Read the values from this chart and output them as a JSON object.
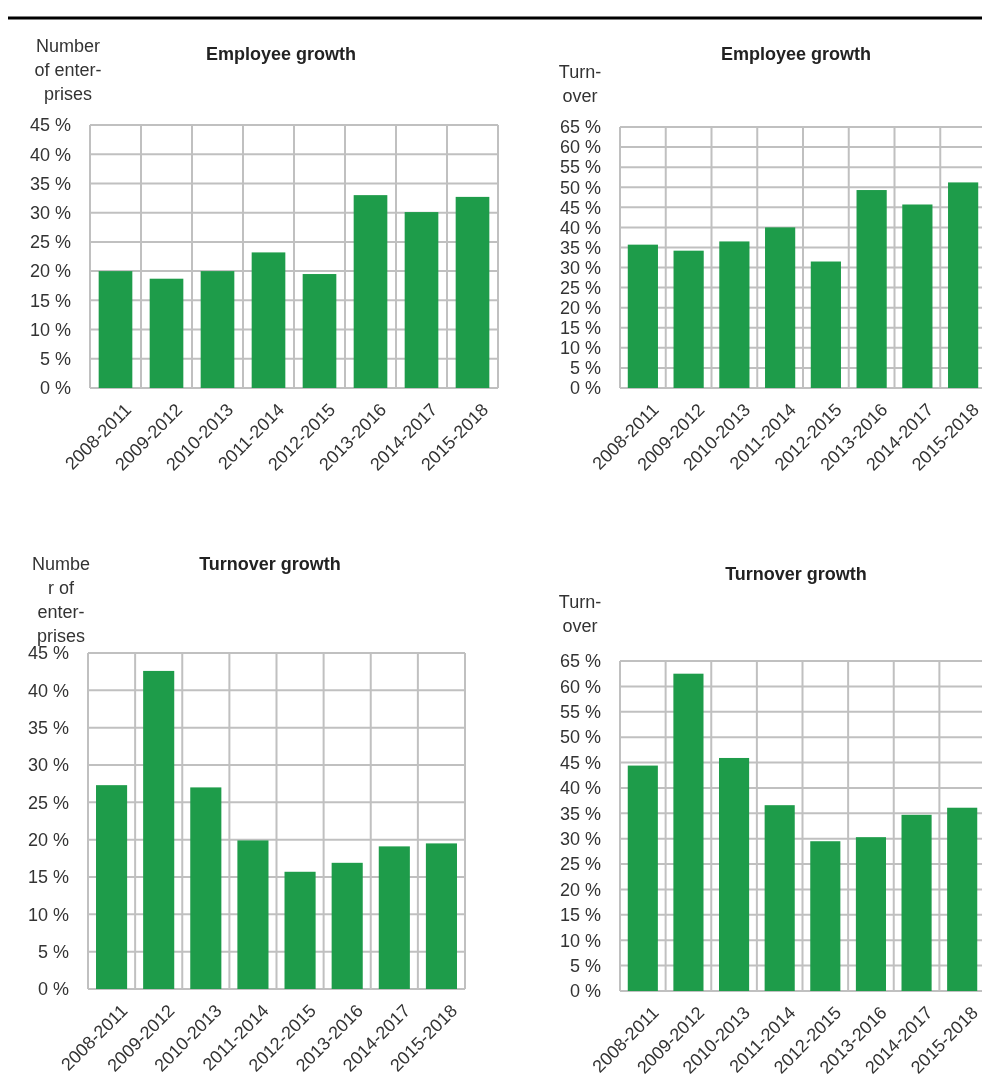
{
  "chart_data": [
    {
      "type": "bar",
      "title": "Employee growth",
      "ylabel": "Number\nof enter-\nprises",
      "categories": [
        "2008-2011",
        "2009-2012",
        "2010-2013",
        "2011-2014",
        "2012-2015",
        "2013-2016",
        "2014-2017",
        "2015-2018"
      ],
      "values": [
        20.0,
        18.7,
        20.0,
        23.2,
        19.5,
        33.0,
        30.1,
        32.7
      ],
      "color": "#1e9c4a",
      "ylim": [
        0,
        45
      ],
      "yticks": [
        {
          "value": 0,
          "label": "0 %"
        },
        {
          "value": 5,
          "label": "5 %"
        },
        {
          "value": 10,
          "label": "10 %"
        },
        {
          "value": 15,
          "label": "15 %"
        },
        {
          "value": 20,
          "label": "20 %"
        },
        {
          "value": 25,
          "label": "25 %"
        },
        {
          "value": 30,
          "label": "30 %"
        },
        {
          "value": 35,
          "label": "35 %"
        },
        {
          "value": 40,
          "label": "40 %"
        },
        {
          "value": 45,
          "label": "45 %"
        }
      ],
      "grid": true
    },
    {
      "type": "bar",
      "title": "Employee growth",
      "ylabel": "Turn-\nover",
      "categories": [
        "2008-2011",
        "2009-2012",
        "2010-2013",
        "2011-2014",
        "2012-2015",
        "2013-2016",
        "2014-2017",
        "2015-2018"
      ],
      "values": [
        35.7,
        34.2,
        36.5,
        40.0,
        31.5,
        49.3,
        45.7,
        51.2
      ],
      "color": "#1e9c4a",
      "ylim": [
        0,
        65
      ],
      "yticks": [
        {
          "value": 0,
          "label": "0 %"
        },
        {
          "value": 5,
          "label": "5 %"
        },
        {
          "value": 10,
          "label": "10 %"
        },
        {
          "value": 15,
          "label": "15 %"
        },
        {
          "value": 20,
          "label": "20 %"
        },
        {
          "value": 25,
          "label": "25 %"
        },
        {
          "value": 30,
          "label": "30 %"
        },
        {
          "value": 35,
          "label": "35 %"
        },
        {
          "value": 40,
          "label": "40 %"
        },
        {
          "value": 45,
          "label": "45 %"
        },
        {
          "value": 50,
          "label": "50 %"
        },
        {
          "value": 55,
          "label": "55 %"
        },
        {
          "value": 60,
          "label": "60 %"
        },
        {
          "value": 65,
          "label": "65 %"
        }
      ],
      "grid": true
    },
    {
      "type": "bar",
      "title": "Turnover growth",
      "ylabel": "Numbe\nr of\nenter-\nprises",
      "categories": [
        "2008-2011",
        "2009-2012",
        "2010-2013",
        "2011-2014",
        "2012-2015",
        "2013-2016",
        "2014-2017",
        "2015-2018"
      ],
      "values": [
        27.3,
        42.6,
        27.0,
        19.9,
        15.7,
        16.9,
        19.1,
        19.5
      ],
      "color": "#1e9c4a",
      "ylim": [
        0,
        45
      ],
      "yticks": [
        {
          "value": 0,
          "label": "0 %"
        },
        {
          "value": 5,
          "label": "5 %"
        },
        {
          "value": 10,
          "label": "10 %"
        },
        {
          "value": 15,
          "label": "15 %"
        },
        {
          "value": 20,
          "label": "20 %"
        },
        {
          "value": 25,
          "label": "25 %"
        },
        {
          "value": 30,
          "label": "30 %"
        },
        {
          "value": 35,
          "label": "35 %"
        },
        {
          "value": 40,
          "label": "40 %"
        },
        {
          "value": 45,
          "label": "45 %"
        }
      ],
      "grid": true
    },
    {
      "type": "bar",
      "title": "Turnover growth",
      "ylabel": "Turn-\nover",
      "categories": [
        "2008-2011",
        "2009-2012",
        "2010-2013",
        "2011-2014",
        "2012-2015",
        "2013-2016",
        "2014-2017",
        "2015-2018"
      ],
      "values": [
        44.4,
        62.5,
        45.9,
        36.6,
        29.5,
        30.3,
        34.7,
        36.1
      ],
      "color": "#1e9c4a",
      "ylim": [
        0,
        65
      ],
      "yticks": [
        {
          "value": 0,
          "label": "0 %"
        },
        {
          "value": 5,
          "label": "5 %"
        },
        {
          "value": 10,
          "label": "10 %"
        },
        {
          "value": 15,
          "label": "15 %"
        },
        {
          "value": 20,
          "label": "20 %"
        },
        {
          "value": 25,
          "label": "25 %"
        },
        {
          "value": 30,
          "label": "30 %"
        },
        {
          "value": 35,
          "label": "35 %"
        },
        {
          "value": 40,
          "label": "40 %"
        },
        {
          "value": 45,
          "label": "45 %"
        },
        {
          "value": 50,
          "label": "50 %"
        },
        {
          "value": 55,
          "label": "55 %"
        },
        {
          "value": 60,
          "label": "60 %"
        },
        {
          "value": 65,
          "label": "65 %"
        }
      ],
      "grid": true
    }
  ]
}
